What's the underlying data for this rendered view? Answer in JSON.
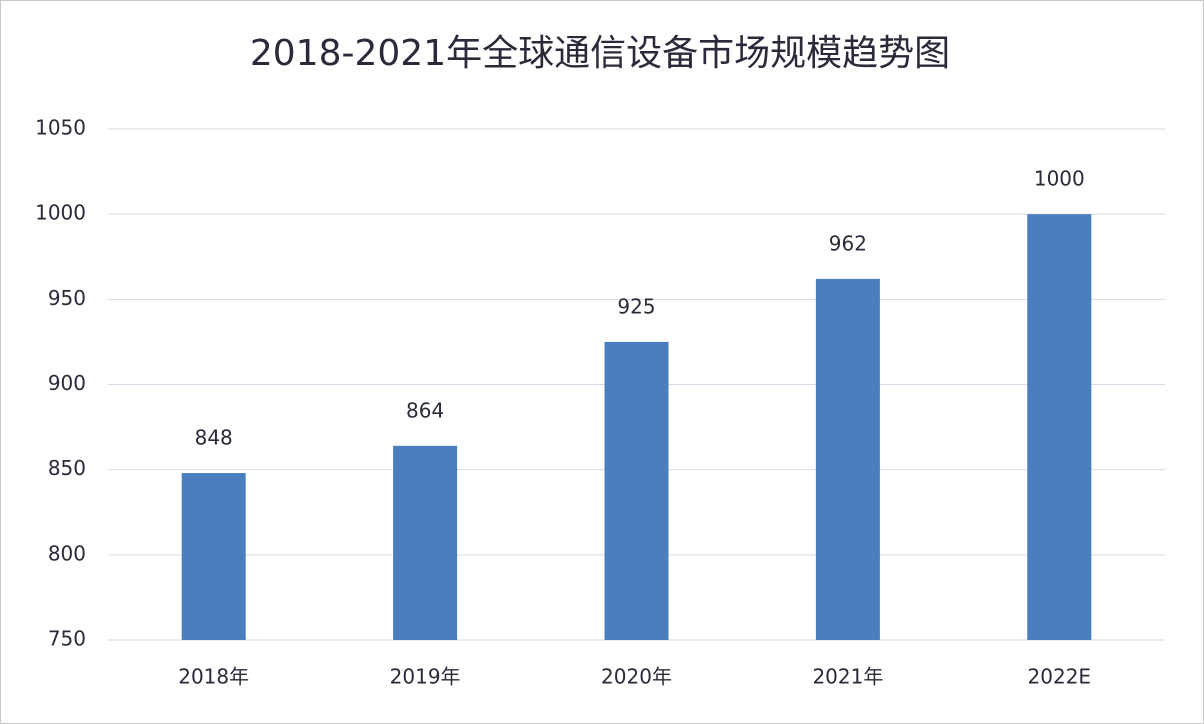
{
  "chart_data": {
    "type": "bar",
    "title": "2018-2021年全球通信设备市场规模趋势图",
    "categories": [
      "2018年",
      "2019年",
      "2020年",
      "2021年",
      "2022E"
    ],
    "values": [
      848,
      864,
      925,
      962,
      1000
    ],
    "color": "#4a7ebf",
    "ylim": [
      750,
      1050
    ],
    "yticks": [
      750,
      800,
      850,
      900,
      950,
      1000,
      1050
    ],
    "grid": true
  }
}
